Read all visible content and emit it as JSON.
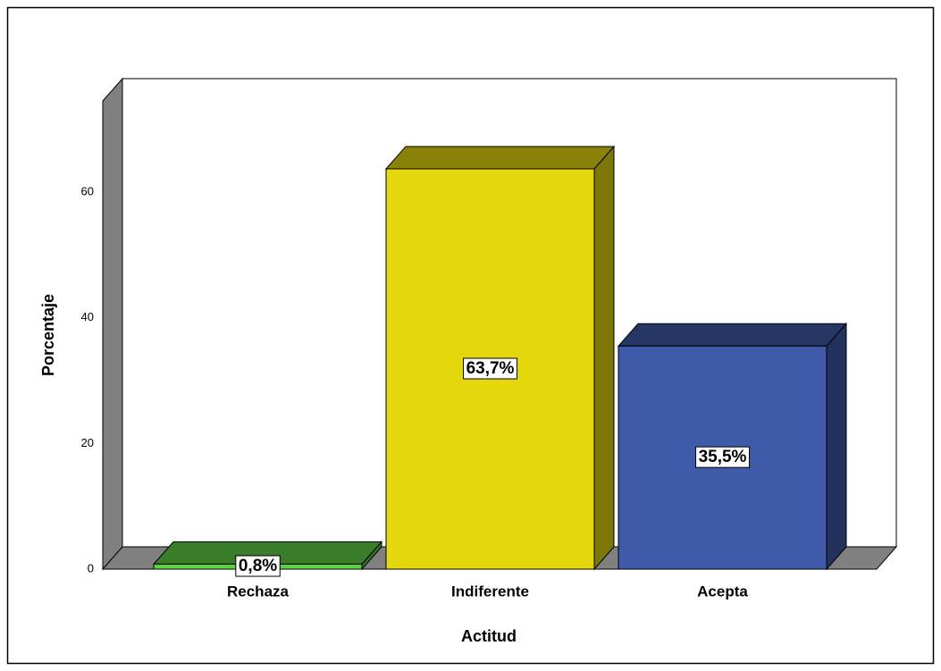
{
  "chart_data": {
    "type": "bar3d",
    "x_label": "Actitud",
    "y_label": "Porcentaje",
    "categories": [
      "Rechaza",
      "Indiferente",
      "Acepta"
    ],
    "values": [
      0.8,
      63.7,
      35.5
    ],
    "value_labels": [
      "0,8%",
      "63,7%",
      "35,5%"
    ],
    "colors": [
      "#5fcf45",
      "#e4d70e",
      "#3f5aa8"
    ],
    "ylim": [
      0,
      74.5
    ],
    "yticks": [
      0,
      20,
      40,
      60
    ],
    "grid": false
  }
}
